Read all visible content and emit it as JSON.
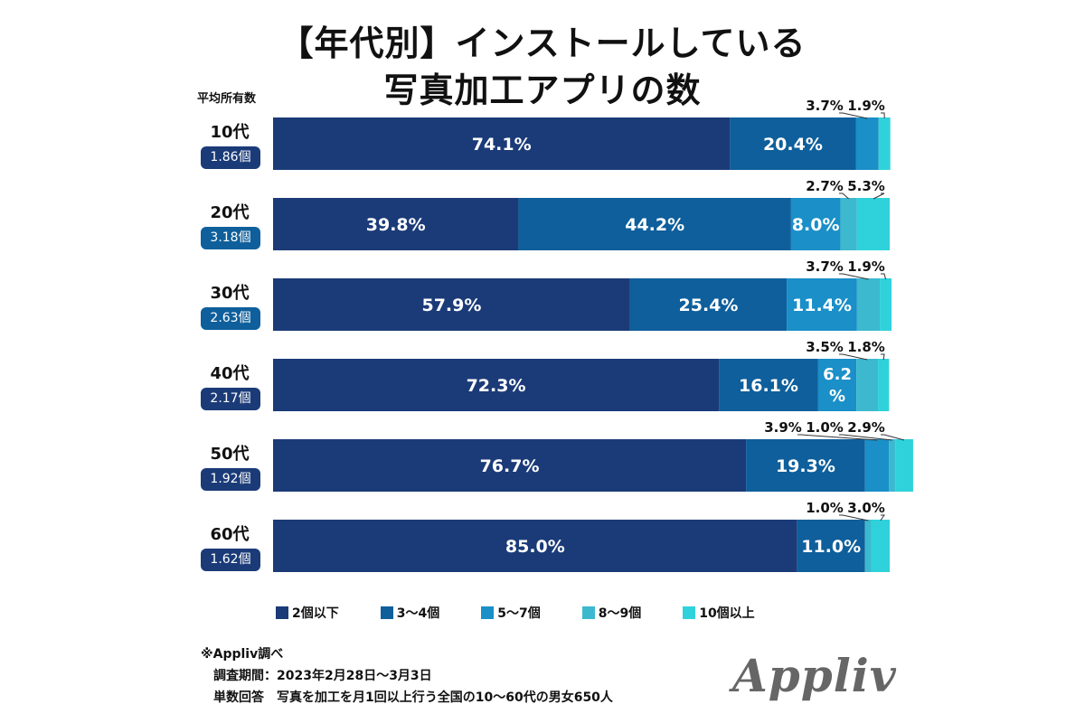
{
  "title_line1": "【年代別】インストールしている",
  "title_line2": "写真加工アプリの数",
  "avg_header": "平均所有数",
  "colors": {
    "c1": "#1b3b78",
    "c2": "#0e5f9b",
    "c3": "#1a8fc8",
    "c4": "#3cb9cf",
    "c5": "#2fd2db",
    "badge_dark": "#1b3b78",
    "badge_mid": "#0e5f9b"
  },
  "chart_data": {
    "type": "bar",
    "orientation": "horizontal",
    "stacked": true,
    "categories": [
      "10代",
      "20代",
      "30代",
      "40代",
      "50代",
      "60代"
    ],
    "averages": [
      "1.86個",
      "3.18個",
      "2.63個",
      "2.17個",
      "1.92個",
      "1.62個"
    ],
    "series": [
      {
        "name": "2個以下",
        "values": [
          74.1,
          39.8,
          57.9,
          72.3,
          76.7,
          85.0
        ]
      },
      {
        "name": "3～4個",
        "values": [
          20.4,
          44.2,
          25.4,
          16.1,
          19.3,
          11.0
        ]
      },
      {
        "name": "5～7個",
        "values": [
          3.7,
          8.0,
          11.4,
          6.2,
          3.9,
          0
        ]
      },
      {
        "name": "8～9個",
        "values": [
          0,
          2.7,
          3.7,
          3.5,
          1.0,
          1.0
        ]
      },
      {
        "name": "10個以上",
        "values": [
          1.9,
          5.3,
          1.9,
          1.8,
          2.9,
          3.0
        ]
      }
    ],
    "xlim": [
      0,
      100
    ],
    "unit": "%",
    "legend_position": "bottom",
    "grid": false
  },
  "footnote": {
    "source": "※Appliv調べ",
    "period": "調査期間：2023年2月28日～3月3日",
    "method": "単数回答　写真を加工を月1回以上行う全国の10～60代の男女650人"
  },
  "logo": "Appliv"
}
